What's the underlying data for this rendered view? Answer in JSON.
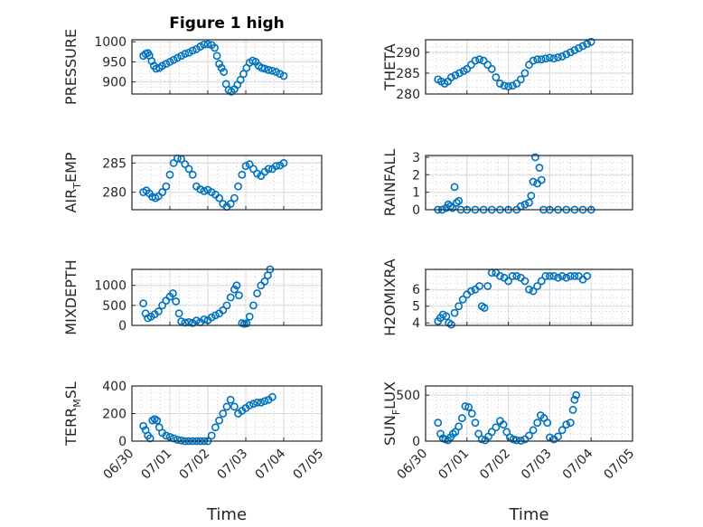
{
  "figure_title": "Figure 1 high",
  "colors": {
    "marker": "#0072BD",
    "axis": "#262626",
    "grid": "#c8c8c8",
    "background": "#ffffff"
  },
  "chart_data": [
    {
      "id": "pressure",
      "type": "scatter",
      "title": "Figure 1 high",
      "ylabel": "PRESSURE",
      "ylabel_sub": "",
      "ylabel_rest": "",
      "xlabel": "",
      "xlim": [
        0,
        5
      ],
      "ylim": [
        870,
        1005
      ],
      "yticks": [
        900,
        950,
        1000
      ],
      "xticks": [],
      "xtick_labels": [],
      "points": [
        [
          0.3,
          965
        ],
        [
          0.36,
          970
        ],
        [
          0.42,
          972
        ],
        [
          0.46,
          966
        ],
        [
          0.52,
          952
        ],
        [
          0.58,
          940
        ],
        [
          0.64,
          933
        ],
        [
          0.72,
          935
        ],
        [
          0.8,
          940
        ],
        [
          0.9,
          945
        ],
        [
          1.0,
          950
        ],
        [
          1.1,
          955
        ],
        [
          1.2,
          960
        ],
        [
          1.3,
          965
        ],
        [
          1.4,
          970
        ],
        [
          1.5,
          973
        ],
        [
          1.6,
          978
        ],
        [
          1.7,
          982
        ],
        [
          1.8,
          988
        ],
        [
          1.9,
          993
        ],
        [
          2.0,
          994
        ],
        [
          2.1,
          992
        ],
        [
          2.18,
          985
        ],
        [
          2.24,
          965
        ],
        [
          2.3,
          945
        ],
        [
          2.36,
          935
        ],
        [
          2.42,
          925
        ],
        [
          2.48,
          895
        ],
        [
          2.55,
          880
        ],
        [
          2.62,
          876
        ],
        [
          2.7,
          882
        ],
        [
          2.78,
          893
        ],
        [
          2.86,
          905
        ],
        [
          2.94,
          920
        ],
        [
          3.02,
          935
        ],
        [
          3.1,
          948
        ],
        [
          3.18,
          953
        ],
        [
          3.26,
          950
        ],
        [
          3.34,
          940
        ],
        [
          3.42,
          935
        ],
        [
          3.5,
          933
        ],
        [
          3.6,
          930
        ],
        [
          3.7,
          928
        ],
        [
          3.8,
          925
        ],
        [
          3.9,
          920
        ],
        [
          4.0,
          915
        ]
      ]
    },
    {
      "id": "theta",
      "type": "scatter",
      "title": "",
      "ylabel": "THETA",
      "ylabel_sub": "",
      "ylabel_rest": "",
      "xlabel": "",
      "xlim": [
        0,
        5
      ],
      "ylim": [
        280,
        293
      ],
      "yticks": [
        280,
        285,
        290
      ],
      "xticks": [],
      "xtick_labels": [],
      "points": [
        [
          0.3,
          283.5
        ],
        [
          0.38,
          283
        ],
        [
          0.46,
          282.5
        ],
        [
          0.54,
          283
        ],
        [
          0.62,
          284
        ],
        [
          0.72,
          284.5
        ],
        [
          0.82,
          285
        ],
        [
          0.92,
          285.5
        ],
        [
          1.0,
          286
        ],
        [
          1.1,
          287
        ],
        [
          1.2,
          288
        ],
        [
          1.3,
          288.3
        ],
        [
          1.4,
          288
        ],
        [
          1.5,
          287
        ],
        [
          1.6,
          286
        ],
        [
          1.7,
          284
        ],
        [
          1.8,
          282.5
        ],
        [
          1.9,
          282
        ],
        [
          2.0,
          281.8
        ],
        [
          2.1,
          282
        ],
        [
          2.2,
          282.5
        ],
        [
          2.3,
          283.5
        ],
        [
          2.4,
          285
        ],
        [
          2.5,
          287
        ],
        [
          2.6,
          288
        ],
        [
          2.7,
          288.3
        ],
        [
          2.8,
          288.3
        ],
        [
          2.9,
          288.5
        ],
        [
          3.0,
          288.7
        ],
        [
          3.1,
          288.5
        ],
        [
          3.2,
          288.8
        ],
        [
          3.3,
          289
        ],
        [
          3.4,
          289.5
        ],
        [
          3.5,
          290
        ],
        [
          3.6,
          290.5
        ],
        [
          3.7,
          291
        ],
        [
          3.8,
          291.5
        ],
        [
          3.9,
          292
        ],
        [
          4.0,
          292.5
        ]
      ]
    },
    {
      "id": "air_temp",
      "type": "scatter",
      "title": "",
      "ylabel": "AIR",
      "ylabel_sub": "T",
      "ylabel_rest": "EMP",
      "xlabel": "",
      "xlim": [
        0,
        5
      ],
      "ylim": [
        277,
        286.3
      ],
      "yticks": [
        280,
        285
      ],
      "xticks": [],
      "xtick_labels": [],
      "points": [
        [
          0.3,
          280
        ],
        [
          0.38,
          280.3
        ],
        [
          0.46,
          279.8
        ],
        [
          0.54,
          279.2
        ],
        [
          0.62,
          279
        ],
        [
          0.7,
          279.3
        ],
        [
          0.8,
          280
        ],
        [
          0.9,
          281
        ],
        [
          1.0,
          283
        ],
        [
          1.1,
          285
        ],
        [
          1.2,
          285.8
        ],
        [
          1.3,
          285.7
        ],
        [
          1.4,
          284.8
        ],
        [
          1.5,
          284
        ],
        [
          1.6,
          283
        ],
        [
          1.7,
          281
        ],
        [
          1.8,
          280.5
        ],
        [
          1.9,
          280.2
        ],
        [
          2.0,
          280.4
        ],
        [
          2.1,
          280
        ],
        [
          2.2,
          279.6
        ],
        [
          2.3,
          279
        ],
        [
          2.4,
          278
        ],
        [
          2.5,
          277.5
        ],
        [
          2.6,
          278
        ],
        [
          2.7,
          279
        ],
        [
          2.8,
          281
        ],
        [
          2.9,
          283
        ],
        [
          3.0,
          284.5
        ],
        [
          3.1,
          284.8
        ],
        [
          3.2,
          284
        ],
        [
          3.3,
          283.2
        ],
        [
          3.4,
          282.8
        ],
        [
          3.5,
          283.5
        ],
        [
          3.6,
          284
        ],
        [
          3.7,
          284
        ],
        [
          3.8,
          284.5
        ],
        [
          3.9,
          284.6
        ],
        [
          4.0,
          285
        ]
      ]
    },
    {
      "id": "rainfall",
      "type": "scatter",
      "title": "",
      "ylabel": "RAINFALL",
      "ylabel_sub": "",
      "ylabel_rest": "",
      "xlabel": "",
      "xlim": [
        0,
        5
      ],
      "ylim": [
        0,
        3.1
      ],
      "yticks": [
        0,
        1,
        2,
        3
      ],
      "xticks": [],
      "xtick_labels": [],
      "points": [
        [
          0.3,
          0
        ],
        [
          0.4,
          0
        ],
        [
          0.5,
          0.1
        ],
        [
          0.55,
          0.3
        ],
        [
          0.6,
          0.2
        ],
        [
          0.65,
          0.1
        ],
        [
          0.7,
          1.3
        ],
        [
          0.75,
          0.4
        ],
        [
          0.8,
          0.5
        ],
        [
          0.85,
          0
        ],
        [
          1.0,
          0
        ],
        [
          1.2,
          0
        ],
        [
          1.4,
          0
        ],
        [
          1.6,
          0
        ],
        [
          1.8,
          0
        ],
        [
          2.0,
          0
        ],
        [
          2.2,
          0
        ],
        [
          2.3,
          0.2
        ],
        [
          2.4,
          0.3
        ],
        [
          2.5,
          0.4
        ],
        [
          2.55,
          0.8
        ],
        [
          2.6,
          1.6
        ],
        [
          2.65,
          3.0
        ],
        [
          2.7,
          1.5
        ],
        [
          2.75,
          2.4
        ],
        [
          2.8,
          1.7
        ],
        [
          2.85,
          0
        ],
        [
          3.0,
          0
        ],
        [
          3.2,
          0
        ],
        [
          3.4,
          0
        ],
        [
          3.6,
          0
        ],
        [
          3.8,
          0
        ],
        [
          4.0,
          0
        ]
      ]
    },
    {
      "id": "mixdepth",
      "type": "scatter",
      "title": "",
      "ylabel": "MIXDEPTH",
      "ylabel_sub": "",
      "ylabel_rest": "",
      "xlabel": "",
      "xlim": [
        0,
        5
      ],
      "ylim": [
        0,
        1400
      ],
      "yticks": [
        0,
        500,
        1000
      ],
      "xticks": [],
      "xtick_labels": [],
      "points": [
        [
          0.3,
          550
        ],
        [
          0.36,
          300
        ],
        [
          0.42,
          180
        ],
        [
          0.5,
          220
        ],
        [
          0.6,
          280
        ],
        [
          0.7,
          350
        ],
        [
          0.8,
          500
        ],
        [
          0.9,
          620
        ],
        [
          1.0,
          720
        ],
        [
          1.08,
          800
        ],
        [
          1.16,
          600
        ],
        [
          1.24,
          300
        ],
        [
          1.3,
          100
        ],
        [
          1.4,
          70
        ],
        [
          1.5,
          80
        ],
        [
          1.6,
          60
        ],
        [
          1.7,
          120
        ],
        [
          1.8,
          80
        ],
        [
          1.9,
          150
        ],
        [
          2.0,
          130
        ],
        [
          2.1,
          200
        ],
        [
          2.2,
          250
        ],
        [
          2.3,
          300
        ],
        [
          2.4,
          380
        ],
        [
          2.5,
          500
        ],
        [
          2.6,
          700
        ],
        [
          2.7,
          900
        ],
        [
          2.76,
          1000
        ],
        [
          2.82,
          750
        ],
        [
          2.9,
          60
        ],
        [
          2.96,
          40
        ],
        [
          3.02,
          50
        ],
        [
          3.1,
          220
        ],
        [
          3.2,
          500
        ],
        [
          3.3,
          800
        ],
        [
          3.4,
          1000
        ],
        [
          3.5,
          1100
        ],
        [
          3.58,
          1250
        ],
        [
          3.64,
          1400
        ]
      ]
    },
    {
      "id": "h2omixra",
      "type": "scatter",
      "title": "",
      "ylabel": "H2OMIXRA",
      "ylabel_sub": "",
      "ylabel_rest": "",
      "xlabel": "",
      "xlim": [
        0,
        5
      ],
      "ylim": [
        3.85,
        7.2
      ],
      "yticks": [
        4,
        5,
        6
      ],
      "xticks": [],
      "xtick_labels": [],
      "points": [
        [
          0.3,
          4.1
        ],
        [
          0.36,
          4.3
        ],
        [
          0.42,
          4.5
        ],
        [
          0.5,
          4.4
        ],
        [
          0.56,
          4.0
        ],
        [
          0.62,
          3.9
        ],
        [
          0.7,
          4.6
        ],
        [
          0.8,
          5.0
        ],
        [
          0.9,
          5.4
        ],
        [
          1.0,
          5.7
        ],
        [
          1.1,
          5.9
        ],
        [
          1.2,
          6.0
        ],
        [
          1.3,
          6.2
        ],
        [
          1.36,
          5.0
        ],
        [
          1.42,
          4.9
        ],
        [
          1.5,
          6.2
        ],
        [
          1.6,
          7.0
        ],
        [
          1.7,
          7.0
        ],
        [
          1.8,
          6.8
        ],
        [
          1.9,
          6.7
        ],
        [
          2.0,
          6.5
        ],
        [
          2.1,
          6.8
        ],
        [
          2.2,
          6.8
        ],
        [
          2.3,
          6.7
        ],
        [
          2.4,
          6.5
        ],
        [
          2.5,
          6.0
        ],
        [
          2.6,
          5.9
        ],
        [
          2.7,
          6.2
        ],
        [
          2.8,
          6.5
        ],
        [
          2.9,
          6.8
        ],
        [
          3.0,
          6.8
        ],
        [
          3.1,
          6.8
        ],
        [
          3.2,
          6.7
        ],
        [
          3.3,
          6.8
        ],
        [
          3.4,
          6.7
        ],
        [
          3.5,
          6.8
        ],
        [
          3.6,
          6.8
        ],
        [
          3.7,
          6.8
        ],
        [
          3.8,
          6.6
        ],
        [
          3.9,
          6.8
        ]
      ]
    },
    {
      "id": "terr_msl",
      "type": "scatter",
      "title": "",
      "ylabel": "TERR",
      "ylabel_sub": "M",
      "ylabel_rest": "SL",
      "xlabel": "Time",
      "xlim": [
        0,
        5
      ],
      "ylim": [
        0,
        400
      ],
      "yticks": [
        0,
        200,
        400
      ],
      "xticks": [
        0,
        1,
        2,
        3,
        4,
        5
      ],
      "xtick_labels": [
        "06/30",
        "07/01",
        "07/02",
        "07/03",
        "07/04",
        "07/05"
      ],
      "points": [
        [
          0.3,
          110
        ],
        [
          0.36,
          80
        ],
        [
          0.42,
          40
        ],
        [
          0.48,
          20
        ],
        [
          0.54,
          150
        ],
        [
          0.6,
          160
        ],
        [
          0.66,
          150
        ],
        [
          0.72,
          100
        ],
        [
          0.8,
          60
        ],
        [
          0.9,
          40
        ],
        [
          1.0,
          30
        ],
        [
          1.1,
          20
        ],
        [
          1.2,
          10
        ],
        [
          1.3,
          5
        ],
        [
          1.4,
          0
        ],
        [
          1.5,
          0
        ],
        [
          1.6,
          0
        ],
        [
          1.7,
          0
        ],
        [
          1.8,
          0
        ],
        [
          1.9,
          0
        ],
        [
          2.0,
          0
        ],
        [
          2.1,
          40
        ],
        [
          2.2,
          100
        ],
        [
          2.3,
          150
        ],
        [
          2.4,
          200
        ],
        [
          2.5,
          250
        ],
        [
          2.6,
          300
        ],
        [
          2.7,
          250
        ],
        [
          2.8,
          200
        ],
        [
          2.9,
          220
        ],
        [
          3.0,
          240
        ],
        [
          3.1,
          260
        ],
        [
          3.2,
          270
        ],
        [
          3.3,
          280
        ],
        [
          3.4,
          280
        ],
        [
          3.5,
          290
        ],
        [
          3.6,
          300
        ],
        [
          3.7,
          320
        ]
      ]
    },
    {
      "id": "sun_flux",
      "type": "scatter",
      "title": "",
      "ylabel": "SUN",
      "ylabel_sub": "F",
      "ylabel_rest": "LUX",
      "xlabel": "Time",
      "xlim": [
        0,
        5
      ],
      "ylim": [
        0,
        600
      ],
      "yticks": [
        0,
        500
      ],
      "xticks": [
        0,
        1,
        2,
        3,
        4,
        5
      ],
      "xtick_labels": [
        "06/30",
        "07/01",
        "07/02",
        "07/03",
        "07/04",
        "07/05"
      ],
      "points": [
        [
          0.3,
          200
        ],
        [
          0.36,
          80
        ],
        [
          0.42,
          30
        ],
        [
          0.48,
          20
        ],
        [
          0.54,
          10
        ],
        [
          0.6,
          40
        ],
        [
          0.66,
          80
        ],
        [
          0.72,
          100
        ],
        [
          0.8,
          160
        ],
        [
          0.88,
          250
        ],
        [
          0.96,
          380
        ],
        [
          1.04,
          370
        ],
        [
          1.12,
          300
        ],
        [
          1.2,
          200
        ],
        [
          1.28,
          80
        ],
        [
          1.36,
          20
        ],
        [
          1.44,
          10
        ],
        [
          1.52,
          50
        ],
        [
          1.6,
          100
        ],
        [
          1.7,
          150
        ],
        [
          1.8,
          220
        ],
        [
          1.88,
          180
        ],
        [
          1.96,
          100
        ],
        [
          2.04,
          40
        ],
        [
          2.12,
          20
        ],
        [
          2.2,
          10
        ],
        [
          2.3,
          5
        ],
        [
          2.4,
          20
        ],
        [
          2.5,
          60
        ],
        [
          2.6,
          120
        ],
        [
          2.7,
          200
        ],
        [
          2.78,
          280
        ],
        [
          2.86,
          250
        ],
        [
          2.94,
          200
        ],
        [
          3.0,
          40
        ],
        [
          3.1,
          20
        ],
        [
          3.2,
          50
        ],
        [
          3.3,
          120
        ],
        [
          3.4,
          180
        ],
        [
          3.5,
          200
        ],
        [
          3.56,
          340
        ],
        [
          3.6,
          450
        ],
        [
          3.64,
          500
        ]
      ]
    }
  ]
}
